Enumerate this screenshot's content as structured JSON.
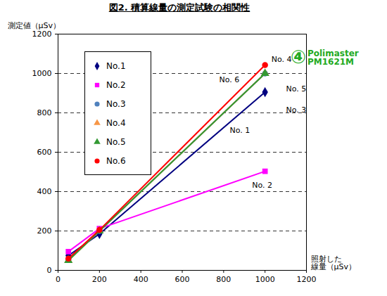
{
  "chart_data": {
    "type": "line",
    "title": "図2. 積算線量の測定試験の相関性",
    "y_label": "測定値（μSv）",
    "x_label": "照射した\n線量（μSv）",
    "x": [
      50,
      200,
      1000
    ],
    "series": [
      {
        "name": "No.1",
        "color": "#000080",
        "marker": "diamond",
        "values": [
          75,
          185,
          905
        ]
      },
      {
        "name": "No.2",
        "color": "#ff00ff",
        "marker": "square",
        "values": [
          95,
          212,
          503
        ]
      },
      {
        "name": "No.3",
        "color": "#4f81bd",
        "marker": "circle",
        "values": [
          55,
          200,
          1000
        ]
      },
      {
        "name": "No.4",
        "color": "#f79646",
        "marker": "triangle",
        "values": [
          50,
          200,
          1000
        ]
      },
      {
        "name": "No.5",
        "color": "#339933",
        "marker": "triangle",
        "values": [
          50,
          200,
          1000
        ]
      },
      {
        "name": "No.6",
        "color": "#ff0000",
        "marker": "circle",
        "values": [
          60,
          205,
          1043
        ]
      }
    ],
    "xlim": [
      0,
      1200
    ],
    "xticks": [
      0,
      200,
      400,
      600,
      800,
      1000,
      1200
    ],
    "ylim": [
      0,
      1200
    ],
    "yticks": [
      0,
      200,
      400,
      600,
      800,
      1000,
      1200
    ],
    "grid": true,
    "legend": "upper left",
    "annotations": [
      {
        "text": "No. 6",
        "x": 827,
        "y": 968,
        "color": "#000000"
      },
      {
        "text": "No. 1",
        "x": 878,
        "y": 711,
        "color": "#000000"
      },
      {
        "text": "No. 2",
        "x": 986,
        "y": 432,
        "color": "#000000"
      },
      {
        "text": "No. 5",
        "x": 1150,
        "y": 921,
        "color": "#000000"
      },
      {
        "text": "No. 3",
        "x": 1150,
        "y": 814,
        "color": "#000000"
      },
      {
        "text": "No. 4",
        "x": 1080,
        "y": 1072,
        "color": "#000000"
      },
      {
        "text": "④",
        "x": 1160,
        "y": 1080,
        "color": "#22aa22"
      },
      {
        "text": "Polimaster\nPM1621M",
        "x": 1205,
        "y": 1080,
        "color": "#22aa22"
      }
    ]
  }
}
